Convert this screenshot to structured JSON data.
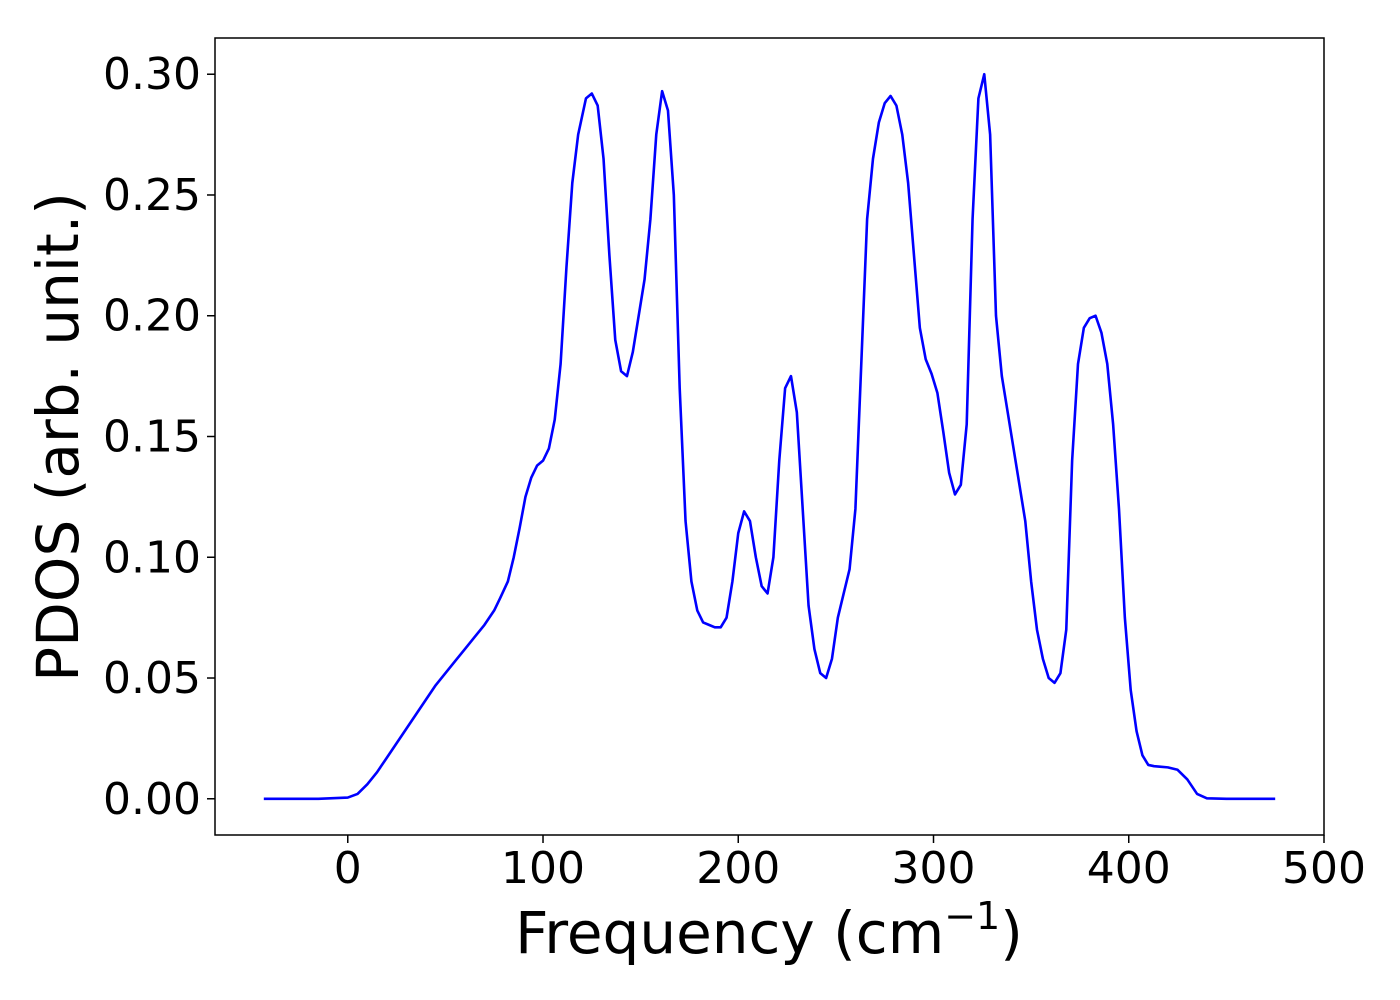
{
  "chart_data": {
    "type": "line",
    "xlabel": "Frequency (cm",
    "xlabel_unit_exponent": "−1",
    "xlabel_close": ")",
    "ylabel": "PDOS (arb. unit.)",
    "xlim": [
      -68,
      500
    ],
    "ylim": [
      -0.015,
      0.315
    ],
    "xticks": [
      0,
      100,
      200,
      300,
      400,
      500
    ],
    "xtick_labels": [
      "0",
      "100",
      "200",
      "300",
      "400",
      "500"
    ],
    "yticks": [
      0.0,
      0.05,
      0.1,
      0.15,
      0.2,
      0.25,
      0.3
    ],
    "ytick_labels": [
      "0.00",
      "0.05",
      "0.10",
      "0.15",
      "0.20",
      "0.25",
      "0.30"
    ],
    "grid": false,
    "series": [
      {
        "color": "#0000ff",
        "x": [
          -43,
          -30,
          -15,
          0,
          5,
          10,
          15,
          20,
          25,
          30,
          35,
          40,
          45,
          50,
          55,
          60,
          65,
          70,
          75,
          78,
          82,
          85,
          88,
          91,
          94,
          97,
          100,
          103,
          106,
          109,
          112,
          115,
          118,
          122,
          125,
          128,
          131,
          134,
          137,
          140,
          143,
          146,
          149,
          152,
          155,
          158,
          161,
          164,
          167,
          170,
          173,
          176,
          179,
          182,
          185,
          188,
          191,
          194,
          197,
          200,
          203,
          206,
          209,
          212,
          215,
          218,
          221,
          224,
          227,
          230,
          233,
          236,
          239,
          242,
          245,
          248,
          251,
          254,
          257,
          260,
          263,
          266,
          269,
          272,
          275,
          278,
          281,
          284,
          287,
          290,
          293,
          296,
          299,
          302,
          305,
          308,
          311,
          314,
          317,
          320,
          323,
          326,
          329,
          332,
          335,
          338,
          341,
          344,
          347,
          350,
          353,
          356,
          359,
          362,
          365,
          368,
          371,
          374,
          377,
          380,
          383,
          386,
          389,
          392,
          395,
          398,
          401,
          404,
          407,
          410,
          413,
          416,
          420,
          425,
          430,
          435,
          440,
          450,
          460,
          475
        ],
        "y": [
          0.0,
          0.0,
          0.0,
          0.0005,
          0.002,
          0.006,
          0.011,
          0.017,
          0.023,
          0.029,
          0.035,
          0.041,
          0.047,
          0.052,
          0.057,
          0.062,
          0.067,
          0.072,
          0.078,
          0.083,
          0.09,
          0.1,
          0.112,
          0.125,
          0.133,
          0.138,
          0.14,
          0.145,
          0.157,
          0.18,
          0.22,
          0.255,
          0.275,
          0.29,
          0.292,
          0.287,
          0.265,
          0.225,
          0.19,
          0.177,
          0.175,
          0.185,
          0.2,
          0.215,
          0.24,
          0.275,
          0.293,
          0.285,
          0.25,
          0.17,
          0.115,
          0.09,
          0.078,
          0.073,
          0.072,
          0.071,
          0.071,
          0.075,
          0.09,
          0.11,
          0.119,
          0.115,
          0.1,
          0.088,
          0.085,
          0.1,
          0.14,
          0.17,
          0.175,
          0.16,
          0.12,
          0.08,
          0.062,
          0.052,
          0.05,
          0.058,
          0.075,
          0.085,
          0.095,
          0.12,
          0.18,
          0.24,
          0.265,
          0.28,
          0.288,
          0.291,
          0.287,
          0.275,
          0.255,
          0.225,
          0.195,
          0.182,
          0.176,
          0.168,
          0.152,
          0.135,
          0.126,
          0.13,
          0.155,
          0.24,
          0.29,
          0.3,
          0.275,
          0.2,
          0.175,
          0.16,
          0.145,
          0.13,
          0.115,
          0.09,
          0.07,
          0.058,
          0.05,
          0.048,
          0.052,
          0.07,
          0.14,
          0.18,
          0.195,
          0.199,
          0.2,
          0.193,
          0.18,
          0.155,
          0.12,
          0.075,
          0.045,
          0.028,
          0.018,
          0.014,
          0.0135,
          0.0133,
          0.013,
          0.012,
          0.008,
          0.002,
          0.0002,
          0.0,
          0.0,
          0.0
        ]
      }
    ]
  }
}
